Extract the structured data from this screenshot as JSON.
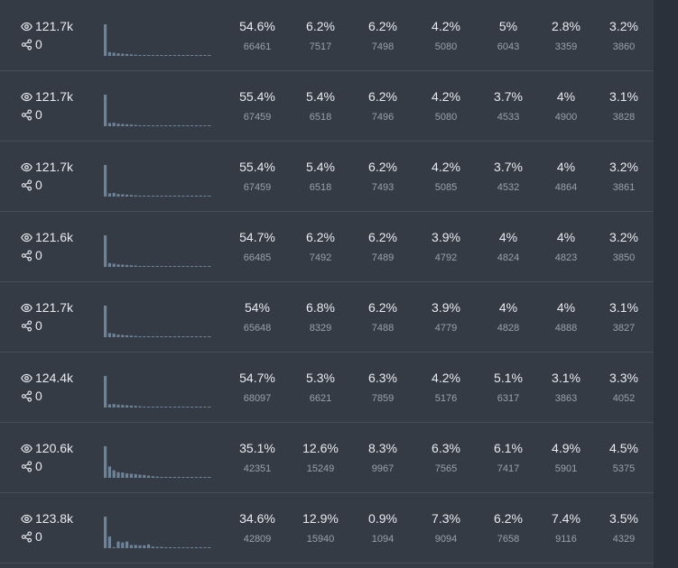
{
  "rows": [
    {
      "views": "121.7k",
      "shares": "0",
      "cells": [
        {
          "pct": "54.6%",
          "count": "66461"
        },
        {
          "pct": "6.2%",
          "count": "7517"
        },
        {
          "pct": "6.2%",
          "count": "7498"
        },
        {
          "pct": "4.2%",
          "count": "5080"
        },
        {
          "pct": "5%",
          "count": "6043"
        },
        {
          "pct": "2.8%",
          "count": "3359"
        },
        {
          "pct": "3.2%",
          "count": "3860"
        }
      ],
      "spark": [
        100,
        12,
        10,
        8,
        7,
        6,
        5,
        4,
        3,
        3,
        2,
        2,
        2,
        2,
        2,
        2,
        2,
        2,
        2,
        2,
        2,
        2,
        2,
        2,
        2
      ]
    },
    {
      "views": "121.7k",
      "shares": "0",
      "cells": [
        {
          "pct": "55.4%",
          "count": "67459"
        },
        {
          "pct": "5.4%",
          "count": "6518"
        },
        {
          "pct": "6.2%",
          "count": "7496"
        },
        {
          "pct": "4.2%",
          "count": "5080"
        },
        {
          "pct": "3.7%",
          "count": "4533"
        },
        {
          "pct": "4%",
          "count": "4900"
        },
        {
          "pct": "3.1%",
          "count": "3828"
        }
      ],
      "spark": [
        100,
        10,
        11,
        8,
        7,
        6,
        5,
        4,
        3,
        3,
        2,
        2,
        2,
        2,
        2,
        2,
        2,
        2,
        2,
        2,
        2,
        2,
        2,
        2,
        2
      ]
    },
    {
      "views": "121.7k",
      "shares": "0",
      "cells": [
        {
          "pct": "55.4%",
          "count": "67459"
        },
        {
          "pct": "5.4%",
          "count": "6518"
        },
        {
          "pct": "6.2%",
          "count": "7493"
        },
        {
          "pct": "4.2%",
          "count": "5085"
        },
        {
          "pct": "3.7%",
          "count": "4532"
        },
        {
          "pct": "4%",
          "count": "4864"
        },
        {
          "pct": "3.2%",
          "count": "3861"
        }
      ],
      "spark": [
        100,
        10,
        11,
        8,
        7,
        6,
        5,
        4,
        3,
        3,
        2,
        2,
        2,
        2,
        2,
        2,
        2,
        2,
        2,
        2,
        2,
        2,
        2,
        2,
        2
      ]
    },
    {
      "views": "121.6k",
      "shares": "0",
      "cells": [
        {
          "pct": "54.7%",
          "count": "66485"
        },
        {
          "pct": "6.2%",
          "count": "7492"
        },
        {
          "pct": "6.2%",
          "count": "7489"
        },
        {
          "pct": "3.9%",
          "count": "4792"
        },
        {
          "pct": "4%",
          "count": "4824"
        },
        {
          "pct": "4%",
          "count": "4823"
        },
        {
          "pct": "3.2%",
          "count": "3850"
        }
      ],
      "spark": [
        100,
        12,
        10,
        8,
        7,
        6,
        5,
        4,
        3,
        3,
        2,
        2,
        2,
        2,
        2,
        2,
        2,
        2,
        2,
        2,
        2,
        2,
        2,
        2,
        2
      ]
    },
    {
      "views": "121.7k",
      "shares": "0",
      "cells": [
        {
          "pct": "54%",
          "count": "65648"
        },
        {
          "pct": "6.8%",
          "count": "8329"
        },
        {
          "pct": "6.2%",
          "count": "7488"
        },
        {
          "pct": "3.9%",
          "count": "4779"
        },
        {
          "pct": "4%",
          "count": "4828"
        },
        {
          "pct": "4%",
          "count": "4888"
        },
        {
          "pct": "3.1%",
          "count": "3827"
        }
      ],
      "spark": [
        100,
        13,
        11,
        8,
        7,
        6,
        5,
        4,
        3,
        3,
        2,
        2,
        2,
        2,
        2,
        2,
        2,
        2,
        2,
        2,
        2,
        2,
        2,
        2,
        2
      ]
    },
    {
      "views": "124.4k",
      "shares": "0",
      "cells": [
        {
          "pct": "54.7%",
          "count": "68097"
        },
        {
          "pct": "5.3%",
          "count": "6621"
        },
        {
          "pct": "6.3%",
          "count": "7859"
        },
        {
          "pct": "4.2%",
          "count": "5176"
        },
        {
          "pct": "5.1%",
          "count": "6317"
        },
        {
          "pct": "3.1%",
          "count": "3863"
        },
        {
          "pct": "3.3%",
          "count": "4052"
        }
      ],
      "spark": [
        100,
        10,
        11,
        9,
        8,
        7,
        6,
        5,
        4,
        3,
        2,
        2,
        2,
        2,
        2,
        2,
        2,
        2,
        2,
        2,
        2,
        2,
        2,
        2,
        2
      ]
    },
    {
      "views": "120.6k",
      "shares": "0",
      "cells": [
        {
          "pct": "35.1%",
          "count": "42351"
        },
        {
          "pct": "12.6%",
          "count": "15249"
        },
        {
          "pct": "8.3%",
          "count": "9967"
        },
        {
          "pct": "6.3%",
          "count": "7565"
        },
        {
          "pct": "6.1%",
          "count": "7417"
        },
        {
          "pct": "4.9%",
          "count": "5901"
        },
        {
          "pct": "4.5%",
          "count": "5375"
        }
      ],
      "spark": [
        100,
        36,
        24,
        18,
        17,
        14,
        13,
        12,
        10,
        9,
        7,
        5,
        4,
        3,
        3,
        2,
        2,
        2,
        2,
        2,
        3,
        3,
        3,
        3,
        3
      ]
    },
    {
      "views": "123.8k",
      "shares": "0",
      "cells": [
        {
          "pct": "34.6%",
          "count": "42809"
        },
        {
          "pct": "12.9%",
          "count": "15940"
        },
        {
          "pct": "0.9%",
          "count": "1094"
        },
        {
          "pct": "7.3%",
          "count": "9094"
        },
        {
          "pct": "6.2%",
          "count": "7658"
        },
        {
          "pct": "7.4%",
          "count": "9116"
        },
        {
          "pct": "3.5%",
          "count": "4329"
        }
      ],
      "spark": [
        100,
        37,
        3,
        21,
        18,
        21,
        10,
        10,
        9,
        9,
        12,
        5,
        4,
        4,
        3,
        3,
        2,
        2,
        2,
        2,
        2,
        2,
        2,
        2,
        2
      ]
    }
  ],
  "colors": {
    "panel": "#343b45",
    "page": "#2b313a",
    "bar": "#6d8398",
    "text": "#e8ebef",
    "muted": "#98a1ac"
  }
}
